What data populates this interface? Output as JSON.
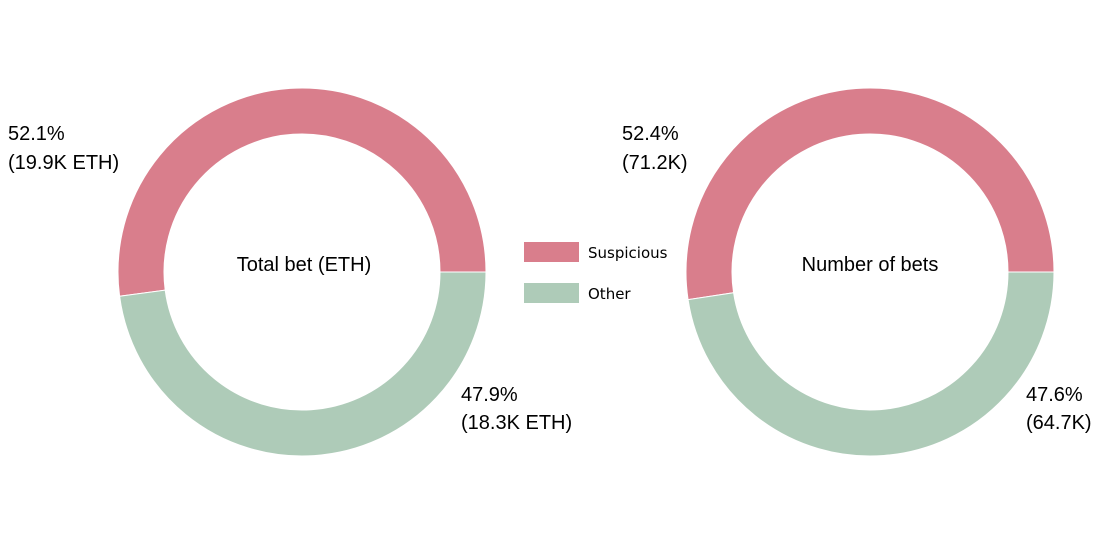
{
  "chart_data": [
    {
      "type": "pie",
      "donut": true,
      "center_label": "Total bet (ETH)",
      "slices": [
        {
          "name": "Suspicious",
          "percent": 52.1,
          "value_label": "19.9K ETH",
          "pct_label": "52.1%",
          "detail_label": "(19.9K ETH)",
          "color": "#d97e8c"
        },
        {
          "name": "Other",
          "percent": 47.9,
          "value_label": "18.3K ETH",
          "pct_label": "47.9%",
          "detail_label": "(18.3K ETH)",
          "color": "#aecbb8"
        }
      ]
    },
    {
      "type": "pie",
      "donut": true,
      "center_label": "Number of bets",
      "slices": [
        {
          "name": "Suspicious",
          "percent": 52.4,
          "value_label": "71.2K",
          "pct_label": "52.4%",
          "detail_label": "(71.2K)",
          "color": "#d97e8c"
        },
        {
          "name": "Other",
          "percent": 47.6,
          "value_label": "64.7K",
          "pct_label": "47.6%",
          "detail_label": "(64.7K)",
          "color": "#aecbb8"
        }
      ]
    }
  ],
  "legend": {
    "placement": "center",
    "items": [
      {
        "label": "Suspicious",
        "color": "#d97e8c"
      },
      {
        "label": "Other",
        "color": "#aecbb8"
      }
    ]
  }
}
